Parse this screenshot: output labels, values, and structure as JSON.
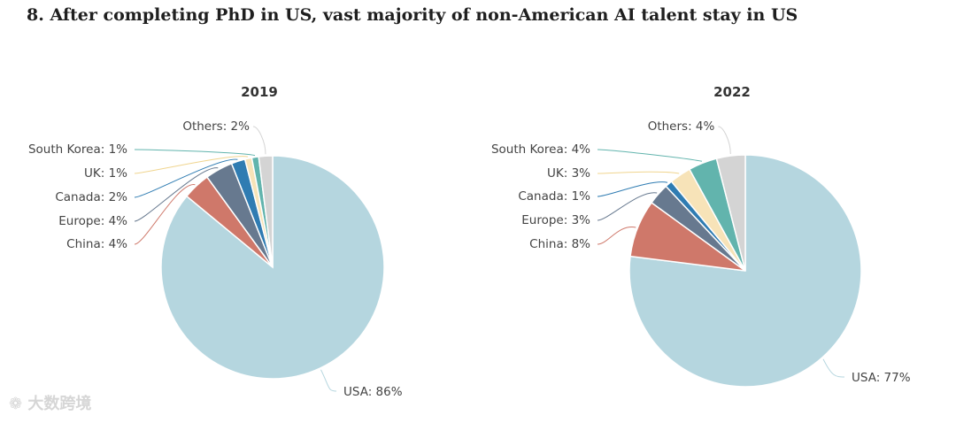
{
  "title": "8. After completing PhD in US, vast majority of non-American AI talent stay in US",
  "watermark": {
    "glyph": "❁",
    "text": "大数跨境"
  },
  "chart_data": [
    {
      "type": "pie",
      "title": "2019",
      "slices": [
        {
          "name": "USA",
          "value": 86,
          "label": "USA: 86%",
          "color": "#b5d6df"
        },
        {
          "name": "China",
          "value": 4,
          "label": "China: 4%",
          "color": "#cf786a"
        },
        {
          "name": "Europe",
          "value": 4,
          "label": "Europe: 4%",
          "color": "#67798f"
        },
        {
          "name": "Canada",
          "value": 2,
          "label": "Canada: 2%",
          "color": "#2f7cb2"
        },
        {
          "name": "UK",
          "value": 1,
          "label": "UK: 1%",
          "color": "#f7e3b8"
        },
        {
          "name": "South Korea",
          "value": 1,
          "label": "South Korea: 1%",
          "color": "#62b4ad"
        },
        {
          "name": "Others",
          "value": 2,
          "label": "Others: 2%",
          "color": "#d4d4d4"
        }
      ]
    },
    {
      "type": "pie",
      "title": "2022",
      "slices": [
        {
          "name": "USA",
          "value": 77,
          "label": "USA: 77%",
          "color": "#b5d6df"
        },
        {
          "name": "China",
          "value": 8,
          "label": "China: 8%",
          "color": "#cf786a"
        },
        {
          "name": "Europe",
          "value": 3,
          "label": "Europe: 3%",
          "color": "#67798f"
        },
        {
          "name": "Canada",
          "value": 1,
          "label": "Canada: 1%",
          "color": "#2f7cb2"
        },
        {
          "name": "UK",
          "value": 3,
          "label": "UK: 3%",
          "color": "#f7e3b8"
        },
        {
          "name": "South Korea",
          "value": 4,
          "label": "South Korea: 4%",
          "color": "#62b4ad"
        },
        {
          "name": "Others",
          "value": 4,
          "label": "Others: 4%",
          "color": "#d4d4d4"
        }
      ]
    }
  ]
}
